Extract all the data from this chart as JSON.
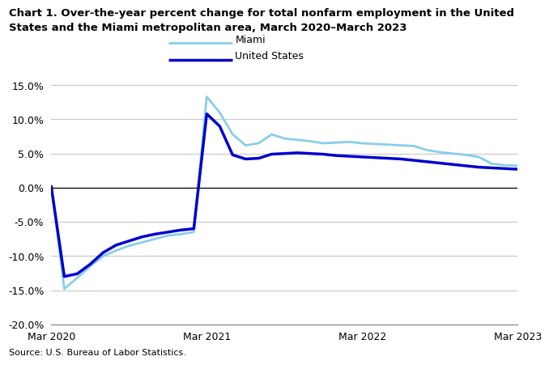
{
  "title_line1": "Chart 1. Over-the-year percent change for total nonfarm employment in the United",
  "title_line2": "States and the Miami metropolitan area, March 2020–March 2023",
  "source": "Source: U.S. Bureau of Labor Statistics.",
  "ylim": [
    -20.0,
    16.0
  ],
  "yticks": [
    -20.0,
    -15.0,
    -10.0,
    -5.0,
    0.0,
    5.0,
    10.0,
    15.0
  ],
  "xtick_labels": [
    "Mar 2020",
    "Mar 2021",
    "Mar 2022",
    "Mar 2023"
  ],
  "miami_color": "#87CEEB",
  "us_color": "#0000CC",
  "miami_label": "Miami",
  "us_label": "United States",
  "background_color": "#ffffff",
  "grid_color": "#c8c8c8",
  "miami_data": [
    0.3,
    -14.8,
    -13.2,
    -11.5,
    -10.0,
    -9.2,
    -8.5,
    -8.0,
    -7.5,
    -7.0,
    -6.8,
    -6.5,
    13.3,
    11.0,
    7.8,
    6.2,
    6.5,
    7.8,
    7.2,
    7.0,
    6.8,
    6.5,
    6.6,
    6.7,
    6.5,
    6.4,
    6.3,
    6.2,
    6.1,
    5.5,
    5.2,
    5.0,
    4.8,
    4.5,
    3.5,
    3.3,
    3.2
  ],
  "us_data": [
    0.1,
    -13.0,
    -12.6,
    -11.2,
    -9.5,
    -8.4,
    -7.8,
    -7.2,
    -6.8,
    -6.5,
    -6.2,
    -6.0,
    10.8,
    9.0,
    4.8,
    4.2,
    4.3,
    4.9,
    5.0,
    5.1,
    5.0,
    4.9,
    4.7,
    4.6,
    4.5,
    4.4,
    4.3,
    4.2,
    4.0,
    3.8,
    3.6,
    3.4,
    3.2,
    3.0,
    2.9,
    2.8,
    2.7
  ]
}
